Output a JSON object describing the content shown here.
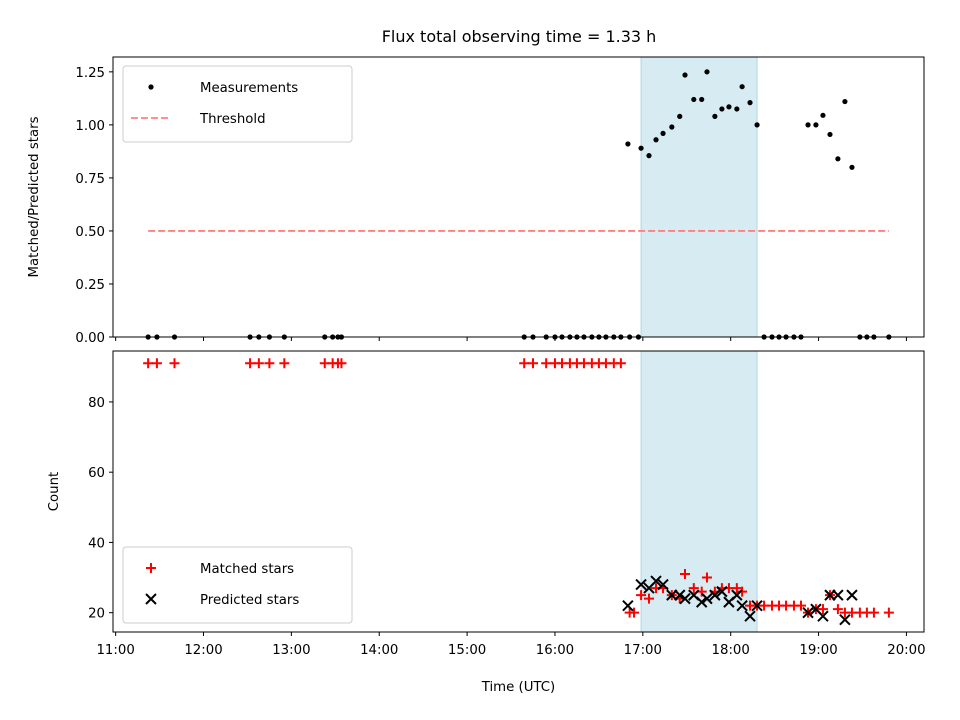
{
  "title": "Flux total observing time = 1.33 h",
  "shaded_band": {
    "x_start": 16.98,
    "x_end": 18.3,
    "color": "#add8e6"
  },
  "chart_data": [
    {
      "type": "scatter",
      "ylabel": "Matched/Predicted stars",
      "xlim": [
        10.97,
        20.2
      ],
      "ylim": [
        0.0,
        1.32
      ],
      "yticks": [
        0.0,
        0.25,
        0.5,
        0.75,
        1.0,
        1.25
      ],
      "ytick_labels": [
        "0.00",
        "0.25",
        "0.50",
        "0.75",
        "1.00",
        "1.25"
      ],
      "legend": {
        "placement": "top-left",
        "entries": [
          "Measurements",
          "Threshold"
        ]
      },
      "threshold": {
        "name": "Threshold",
        "y": 0.5,
        "x_range": [
          11.37,
          19.8
        ],
        "color": "#ff8080",
        "style": "dashed"
      },
      "series": [
        {
          "name": "Measurements",
          "color": "#000000",
          "marker": "dot",
          "points": [
            [
              11.37,
              0
            ],
            [
              11.47,
              0
            ],
            [
              11.67,
              0
            ],
            [
              12.53,
              0
            ],
            [
              12.63,
              0
            ],
            [
              12.75,
              0
            ],
            [
              12.92,
              0
            ],
            [
              13.38,
              0
            ],
            [
              13.47,
              0
            ],
            [
              13.53,
              0
            ],
            [
              13.57,
              0
            ],
            [
              15.65,
              0
            ],
            [
              15.75,
              0
            ],
            [
              15.9,
              0
            ],
            [
              16.0,
              0
            ],
            [
              16.08,
              0
            ],
            [
              16.17,
              0
            ],
            [
              16.25,
              0
            ],
            [
              16.33,
              0
            ],
            [
              16.42,
              0
            ],
            [
              16.5,
              0
            ],
            [
              16.58,
              0
            ],
            [
              16.67,
              0
            ],
            [
              16.75,
              0
            ],
            [
              16.85,
              0
            ],
            [
              16.95,
              0
            ],
            [
              16.83,
              0.91
            ],
            [
              16.98,
              0.89
            ],
            [
              17.07,
              0.855
            ],
            [
              17.15,
              0.93
            ],
            [
              17.23,
              0.96
            ],
            [
              17.33,
              0.99
            ],
            [
              17.42,
              1.04
            ],
            [
              17.48,
              1.235
            ],
            [
              17.58,
              1.12
            ],
            [
              17.67,
              1.12
            ],
            [
              17.73,
              1.25
            ],
            [
              17.82,
              1.04
            ],
            [
              17.9,
              1.075
            ],
            [
              17.98,
              1.085
            ],
            [
              18.07,
              1.075
            ],
            [
              18.13,
              1.18
            ],
            [
              18.22,
              1.105
            ],
            [
              18.3,
              1.0
            ],
            [
              18.38,
              0
            ],
            [
              18.47,
              0
            ],
            [
              18.55,
              0
            ],
            [
              18.63,
              0
            ],
            [
              18.72,
              0
            ],
            [
              18.8,
              0
            ],
            [
              18.88,
              1.0
            ],
            [
              18.97,
              1.0
            ],
            [
              19.05,
              1.045
            ],
            [
              19.13,
              0.955
            ],
            [
              19.22,
              0.84
            ],
            [
              19.3,
              1.11
            ],
            [
              19.38,
              0.8
            ],
            [
              19.47,
              0
            ],
            [
              19.55,
              0
            ],
            [
              19.63,
              0
            ],
            [
              19.8,
              0
            ]
          ]
        }
      ]
    },
    {
      "type": "scatter",
      "xlabel": "Time (UTC)",
      "ylabel": "Count",
      "xlim": [
        10.97,
        20.2
      ],
      "ylim": [
        14.5,
        94.5
      ],
      "yticks": [
        20,
        40,
        60,
        80
      ],
      "ytick_labels": [
        "20",
        "40",
        "60",
        "80"
      ],
      "xticks": [
        11,
        12,
        13,
        14,
        15,
        16,
        17,
        18,
        19,
        20
      ],
      "xtick_labels": [
        "11:00",
        "12:00",
        "13:00",
        "14:00",
        "15:00",
        "16:00",
        "17:00",
        "18:00",
        "19:00",
        "20:00"
      ],
      "legend": {
        "placement": "bottom-left",
        "entries": [
          "Matched stars",
          "Predicted stars"
        ]
      },
      "series": [
        {
          "name": "Matched stars",
          "color": "#ff0000",
          "marker": "plus",
          "points": [
            [
              11.37,
              91
            ],
            [
              11.47,
              91
            ],
            [
              11.67,
              91
            ],
            [
              12.53,
              91
            ],
            [
              12.63,
              91
            ],
            [
              12.75,
              91
            ],
            [
              12.92,
              91
            ],
            [
              13.38,
              91
            ],
            [
              13.47,
              91
            ],
            [
              13.53,
              91
            ],
            [
              13.57,
              91
            ],
            [
              15.65,
              91
            ],
            [
              15.75,
              91
            ],
            [
              15.9,
              91
            ],
            [
              16.0,
              91
            ],
            [
              16.08,
              91
            ],
            [
              16.17,
              91
            ],
            [
              16.25,
              91
            ],
            [
              16.33,
              91
            ],
            [
              16.42,
              91
            ],
            [
              16.5,
              91
            ],
            [
              16.58,
              91
            ],
            [
              16.67,
              91
            ],
            [
              16.75,
              91
            ],
            [
              16.85,
              20
            ],
            [
              16.9,
              20
            ],
            [
              16.98,
              25
            ],
            [
              17.07,
              24
            ],
            [
              17.15,
              27
            ],
            [
              17.23,
              27
            ],
            [
              17.33,
              25
            ],
            [
              17.42,
              24
            ],
            [
              17.48,
              31
            ],
            [
              17.58,
              27
            ],
            [
              17.67,
              26
            ],
            [
              17.73,
              30
            ],
            [
              17.82,
              26
            ],
            [
              17.9,
              27
            ],
            [
              17.98,
              27
            ],
            [
              18.07,
              27
            ],
            [
              18.13,
              26
            ],
            [
              18.22,
              22
            ],
            [
              18.3,
              22
            ],
            [
              18.38,
              22
            ],
            [
              18.47,
              22
            ],
            [
              18.55,
              22
            ],
            [
              18.63,
              22
            ],
            [
              18.72,
              22
            ],
            [
              18.8,
              22
            ],
            [
              18.88,
              20
            ],
            [
              18.97,
              21
            ],
            [
              19.05,
              21
            ],
            [
              19.13,
              25
            ],
            [
              19.22,
              21
            ],
            [
              19.3,
              20
            ],
            [
              19.38,
              20
            ],
            [
              19.47,
              20
            ],
            [
              19.55,
              20
            ],
            [
              19.63,
              20
            ],
            [
              19.8,
              20
            ]
          ]
        },
        {
          "name": "Predicted stars",
          "color": "#000000",
          "marker": "x",
          "points": [
            [
              16.83,
              22
            ],
            [
              16.98,
              28
            ],
            [
              17.07,
              27
            ],
            [
              17.15,
              29
            ],
            [
              17.23,
              28
            ],
            [
              17.33,
              25
            ],
            [
              17.42,
              25
            ],
            [
              17.48,
              24
            ],
            [
              17.58,
              25
            ],
            [
              17.67,
              23
            ],
            [
              17.73,
              24
            ],
            [
              17.82,
              25
            ],
            [
              17.9,
              26
            ],
            [
              17.98,
              23
            ],
            [
              18.07,
              25
            ],
            [
              18.13,
              22
            ],
            [
              18.22,
              19
            ],
            [
              18.3,
              22
            ],
            [
              18.88,
              20
            ],
            [
              18.97,
              21
            ],
            [
              19.05,
              19
            ],
            [
              19.13,
              25
            ],
            [
              19.22,
              25
            ],
            [
              19.3,
              18
            ],
            [
              19.38,
              25
            ]
          ]
        }
      ]
    }
  ]
}
